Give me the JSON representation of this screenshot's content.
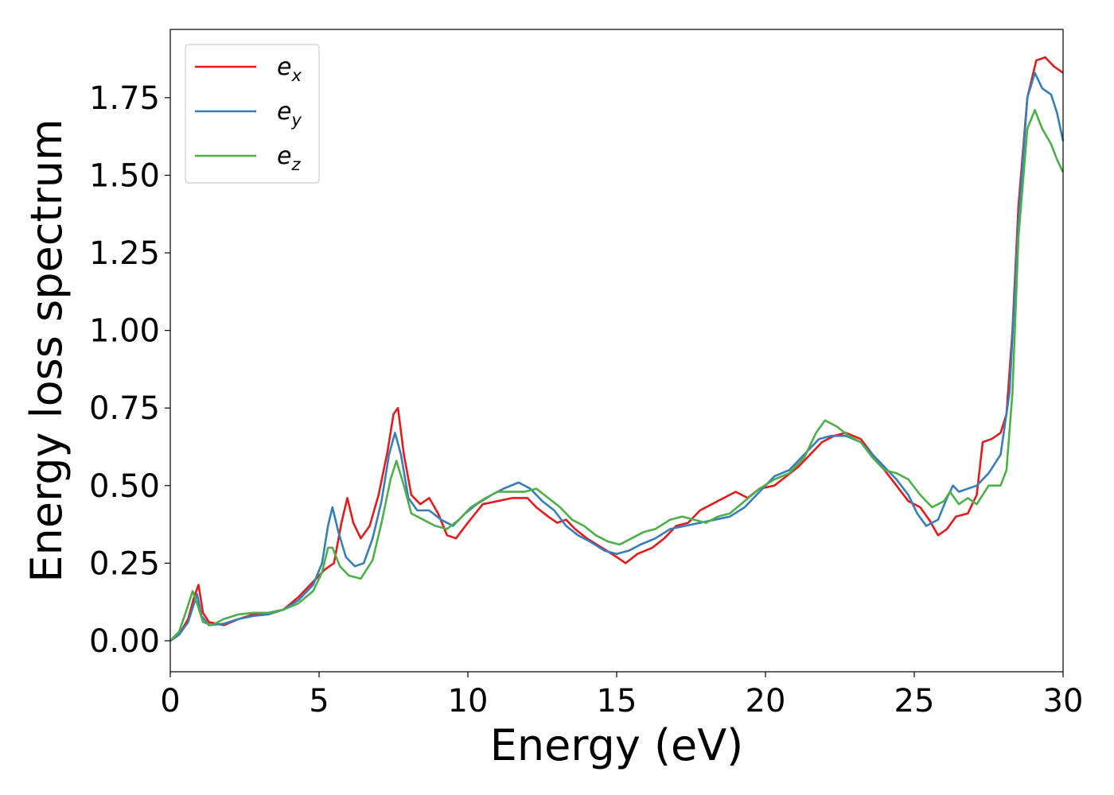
{
  "chart_data": {
    "type": "line",
    "xlabel": "Energy (eV)",
    "ylabel": "Energy loss spectrum",
    "xlim": [
      0,
      30
    ],
    "ylim": [
      -0.1,
      1.97
    ],
    "x_ticks": [
      "0",
      "5",
      "10",
      "15",
      "20",
      "25",
      "30"
    ],
    "y_ticks": [
      "0.00",
      "0.25",
      "0.50",
      "0.75",
      "1.00",
      "1.25",
      "1.50",
      "1.75"
    ],
    "grid": false,
    "legend": "top-left",
    "series": [
      {
        "name": "e_x",
        "base": "e",
        "sub": "x",
        "color": "#e41a1c",
        "points": [
          [
            0,
            0
          ],
          [
            0.3,
            0.02
          ],
          [
            0.6,
            0.07
          ],
          [
            0.8,
            0.14
          ],
          [
            0.95,
            0.18
          ],
          [
            1.1,
            0.09
          ],
          [
            1.3,
            0.06
          ],
          [
            1.8,
            0.05
          ],
          [
            2.3,
            0.07
          ],
          [
            2.8,
            0.085
          ],
          [
            3.3,
            0.09
          ],
          [
            3.8,
            0.1
          ],
          [
            4.3,
            0.14
          ],
          [
            4.8,
            0.19
          ],
          [
            5.2,
            0.23
          ],
          [
            5.5,
            0.25
          ],
          [
            5.75,
            0.38
          ],
          [
            5.95,
            0.46
          ],
          [
            6.15,
            0.38
          ],
          [
            6.4,
            0.33
          ],
          [
            6.7,
            0.37
          ],
          [
            7.0,
            0.47
          ],
          [
            7.3,
            0.61
          ],
          [
            7.5,
            0.73
          ],
          [
            7.65,
            0.75
          ],
          [
            7.85,
            0.6
          ],
          [
            8.1,
            0.47
          ],
          [
            8.4,
            0.44
          ],
          [
            8.7,
            0.46
          ],
          [
            9.0,
            0.41
          ],
          [
            9.3,
            0.34
          ],
          [
            9.6,
            0.33
          ],
          [
            10.0,
            0.38
          ],
          [
            10.5,
            0.44
          ],
          [
            11.0,
            0.45
          ],
          [
            11.5,
            0.46
          ],
          [
            12.0,
            0.46
          ],
          [
            12.3,
            0.43
          ],
          [
            12.7,
            0.4
          ],
          [
            13.0,
            0.38
          ],
          [
            13.3,
            0.39
          ],
          [
            13.6,
            0.36
          ],
          [
            14.0,
            0.33
          ],
          [
            14.5,
            0.3
          ],
          [
            15.0,
            0.27
          ],
          [
            15.3,
            0.25
          ],
          [
            15.7,
            0.28
          ],
          [
            16.2,
            0.3
          ],
          [
            16.6,
            0.33
          ],
          [
            17.0,
            0.37
          ],
          [
            17.4,
            0.38
          ],
          [
            17.8,
            0.42
          ],
          [
            18.2,
            0.44
          ],
          [
            18.6,
            0.46
          ],
          [
            19.0,
            0.48
          ],
          [
            19.4,
            0.46
          ],
          [
            19.8,
            0.49
          ],
          [
            20.3,
            0.5
          ],
          [
            20.7,
            0.53
          ],
          [
            21.1,
            0.56
          ],
          [
            21.5,
            0.6
          ],
          [
            21.9,
            0.64
          ],
          [
            22.3,
            0.66
          ],
          [
            22.7,
            0.67
          ],
          [
            23.2,
            0.65
          ],
          [
            23.6,
            0.6
          ],
          [
            24.0,
            0.55
          ],
          [
            24.4,
            0.5
          ],
          [
            24.8,
            0.45
          ],
          [
            25.2,
            0.43
          ],
          [
            25.5,
            0.39
          ],
          [
            25.8,
            0.34
          ],
          [
            26.1,
            0.36
          ],
          [
            26.4,
            0.4
          ],
          [
            26.8,
            0.41
          ],
          [
            27.1,
            0.47
          ],
          [
            27.3,
            0.64
          ],
          [
            27.6,
            0.65
          ],
          [
            27.9,
            0.67
          ],
          [
            28.1,
            0.73
          ],
          [
            28.3,
            1.0
          ],
          [
            28.5,
            1.4
          ],
          [
            28.8,
            1.75
          ],
          [
            29.1,
            1.87
          ],
          [
            29.4,
            1.88
          ],
          [
            29.7,
            1.85
          ],
          [
            30.0,
            1.83
          ]
        ]
      },
      {
        "name": "e_y",
        "base": "e",
        "sub": "y",
        "color": "#377eb8",
        "points": [
          [
            0,
            0
          ],
          [
            0.3,
            0.02
          ],
          [
            0.6,
            0.06
          ],
          [
            0.8,
            0.12
          ],
          [
            0.9,
            0.15
          ],
          [
            1.05,
            0.08
          ],
          [
            1.3,
            0.05
          ],
          [
            1.8,
            0.055
          ],
          [
            2.3,
            0.07
          ],
          [
            2.8,
            0.08
          ],
          [
            3.3,
            0.085
          ],
          [
            3.8,
            0.1
          ],
          [
            4.3,
            0.13
          ],
          [
            4.8,
            0.18
          ],
          [
            5.1,
            0.25
          ],
          [
            5.3,
            0.37
          ],
          [
            5.45,
            0.43
          ],
          [
            5.65,
            0.35
          ],
          [
            5.9,
            0.27
          ],
          [
            6.2,
            0.24
          ],
          [
            6.5,
            0.25
          ],
          [
            6.8,
            0.33
          ],
          [
            7.1,
            0.45
          ],
          [
            7.35,
            0.6
          ],
          [
            7.55,
            0.67
          ],
          [
            7.75,
            0.6
          ],
          [
            8.0,
            0.46
          ],
          [
            8.3,
            0.42
          ],
          [
            8.7,
            0.42
          ],
          [
            9.1,
            0.39
          ],
          [
            9.5,
            0.37
          ],
          [
            9.9,
            0.41
          ],
          [
            10.3,
            0.44
          ],
          [
            10.8,
            0.47
          ],
          [
            11.2,
            0.49
          ],
          [
            11.7,
            0.51
          ],
          [
            12.1,
            0.49
          ],
          [
            12.5,
            0.45
          ],
          [
            12.9,
            0.42
          ],
          [
            13.3,
            0.37
          ],
          [
            13.7,
            0.34
          ],
          [
            14.1,
            0.32
          ],
          [
            14.6,
            0.29
          ],
          [
            15.0,
            0.28
          ],
          [
            15.4,
            0.29
          ],
          [
            15.8,
            0.31
          ],
          [
            16.3,
            0.33
          ],
          [
            16.8,
            0.36
          ],
          [
            17.3,
            0.37
          ],
          [
            17.8,
            0.38
          ],
          [
            18.3,
            0.39
          ],
          [
            18.8,
            0.4
          ],
          [
            19.3,
            0.43
          ],
          [
            19.8,
            0.48
          ],
          [
            20.3,
            0.53
          ],
          [
            20.8,
            0.55
          ],
          [
            21.3,
            0.6
          ],
          [
            21.8,
            0.65
          ],
          [
            22.2,
            0.66
          ],
          [
            22.7,
            0.66
          ],
          [
            23.2,
            0.64
          ],
          [
            23.6,
            0.6
          ],
          [
            24.0,
            0.56
          ],
          [
            24.4,
            0.52
          ],
          [
            24.8,
            0.47
          ],
          [
            25.1,
            0.41
          ],
          [
            25.4,
            0.37
          ],
          [
            25.8,
            0.39
          ],
          [
            26.1,
            0.46
          ],
          [
            26.3,
            0.5
          ],
          [
            26.5,
            0.48
          ],
          [
            26.8,
            0.49
          ],
          [
            27.1,
            0.5
          ],
          [
            27.5,
            0.54
          ],
          [
            27.9,
            0.6
          ],
          [
            28.2,
            0.8
          ],
          [
            28.5,
            1.35
          ],
          [
            28.8,
            1.75
          ],
          [
            29.05,
            1.83
          ],
          [
            29.3,
            1.78
          ],
          [
            29.6,
            1.76
          ],
          [
            29.8,
            1.7
          ],
          [
            30.0,
            1.61
          ]
        ]
      },
      {
        "name": "e_z",
        "base": "e",
        "sub": "z",
        "color": "#4daf4a",
        "points": [
          [
            0,
            0
          ],
          [
            0.3,
            0.03
          ],
          [
            0.55,
            0.1
          ],
          [
            0.75,
            0.16
          ],
          [
            0.9,
            0.12
          ],
          [
            1.1,
            0.06
          ],
          [
            1.4,
            0.05
          ],
          [
            1.8,
            0.07
          ],
          [
            2.3,
            0.085
          ],
          [
            2.8,
            0.09
          ],
          [
            3.3,
            0.09
          ],
          [
            3.8,
            0.1
          ],
          [
            4.3,
            0.12
          ],
          [
            4.8,
            0.16
          ],
          [
            5.1,
            0.22
          ],
          [
            5.3,
            0.3
          ],
          [
            5.45,
            0.3
          ],
          [
            5.7,
            0.24
          ],
          [
            6.0,
            0.21
          ],
          [
            6.4,
            0.2
          ],
          [
            6.8,
            0.26
          ],
          [
            7.1,
            0.38
          ],
          [
            7.4,
            0.52
          ],
          [
            7.6,
            0.58
          ],
          [
            7.85,
            0.5
          ],
          [
            8.1,
            0.41
          ],
          [
            8.5,
            0.39
          ],
          [
            8.9,
            0.37
          ],
          [
            9.3,
            0.36
          ],
          [
            9.7,
            0.39
          ],
          [
            10.1,
            0.43
          ],
          [
            10.6,
            0.46
          ],
          [
            11.0,
            0.48
          ],
          [
            11.5,
            0.48
          ],
          [
            11.9,
            0.48
          ],
          [
            12.3,
            0.49
          ],
          [
            12.7,
            0.46
          ],
          [
            13.1,
            0.43
          ],
          [
            13.5,
            0.39
          ],
          [
            13.9,
            0.37
          ],
          [
            14.3,
            0.34
          ],
          [
            14.7,
            0.32
          ],
          [
            15.1,
            0.31
          ],
          [
            15.5,
            0.33
          ],
          [
            15.9,
            0.35
          ],
          [
            16.3,
            0.36
          ],
          [
            16.8,
            0.39
          ],
          [
            17.2,
            0.4
          ],
          [
            17.6,
            0.39
          ],
          [
            18.0,
            0.38
          ],
          [
            18.4,
            0.4
          ],
          [
            18.8,
            0.41
          ],
          [
            19.3,
            0.45
          ],
          [
            19.8,
            0.49
          ],
          [
            20.3,
            0.52
          ],
          [
            20.8,
            0.54
          ],
          [
            21.3,
            0.59
          ],
          [
            21.7,
            0.67
          ],
          [
            22.0,
            0.71
          ],
          [
            22.4,
            0.69
          ],
          [
            22.8,
            0.66
          ],
          [
            23.2,
            0.64
          ],
          [
            23.6,
            0.59
          ],
          [
            24.0,
            0.55
          ],
          [
            24.4,
            0.54
          ],
          [
            24.8,
            0.52
          ],
          [
            25.2,
            0.47
          ],
          [
            25.6,
            0.43
          ],
          [
            26.0,
            0.45
          ],
          [
            26.2,
            0.48
          ],
          [
            26.5,
            0.44
          ],
          [
            26.8,
            0.46
          ],
          [
            27.1,
            0.44
          ],
          [
            27.5,
            0.5
          ],
          [
            27.9,
            0.5
          ],
          [
            28.1,
            0.55
          ],
          [
            28.3,
            0.8
          ],
          [
            28.5,
            1.3
          ],
          [
            28.8,
            1.65
          ],
          [
            29.05,
            1.71
          ],
          [
            29.3,
            1.65
          ],
          [
            29.6,
            1.6
          ],
          [
            29.8,
            1.55
          ],
          [
            30.0,
            1.51
          ]
        ]
      }
    ]
  }
}
